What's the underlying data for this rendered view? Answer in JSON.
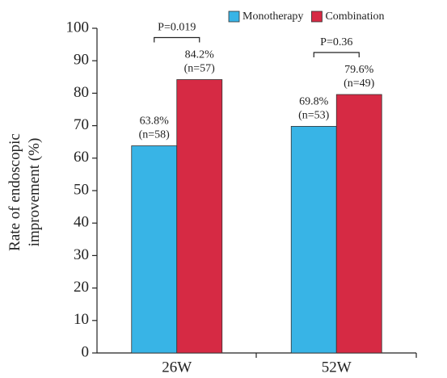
{
  "chart_data": {
    "type": "bar",
    "ylabel": [
      "Rate of endoscopic",
      "improvement (%)"
    ],
    "categories": [
      "26W",
      "52W"
    ],
    "series": [
      {
        "name": "Monotherapy",
        "color": "#38b4e6",
        "values": [
          63.8,
          69.8
        ],
        "value_labels": [
          "63.8%",
          "69.8%"
        ],
        "n_labels": [
          "(n=58)",
          "(n=53)"
        ]
      },
      {
        "name": "Combination",
        "color": "#d62a44",
        "values": [
          84.2,
          79.6
        ],
        "value_labels": [
          "84.2%",
          "79.6%"
        ],
        "n_labels": [
          "(n=57)",
          "(n=49)"
        ]
      }
    ],
    "annotations": [
      "P=0.019",
      "P=0.36"
    ],
    "ylim": [
      0,
      100
    ],
    "yticks": [
      0,
      10,
      20,
      30,
      40,
      50,
      60,
      70,
      80,
      90,
      100
    ],
    "legend": "top-right",
    "grid": false
  }
}
